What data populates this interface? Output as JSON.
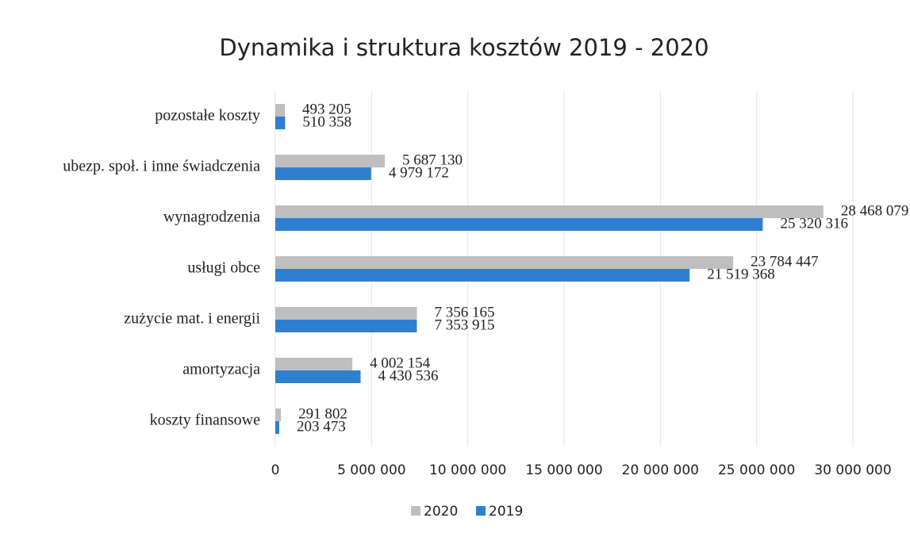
{
  "chart_data": {
    "type": "bar",
    "orientation": "horizontal",
    "title": "Dynamika i struktura kosztów 2019 - 2020",
    "categories": [
      "pozostałe koszty",
      "ubezp. społ. i inne świadczenia",
      "wynagrodzenia",
      "usługi obce",
      "zużycie mat. i energii",
      "amortyzacja",
      "koszty finansowe"
    ],
    "series": [
      {
        "name": "2020",
        "color": "#bfbfbf",
        "values": [
          493205,
          5687130,
          28468079,
          23784447,
          7356165,
          4002154,
          291802
        ],
        "value_labels": [
          "493 205",
          "5 687 130",
          "28 468 079",
          "23 784 447",
          "7 356 165",
          "4 002 154",
          "291 802"
        ]
      },
      {
        "name": "2019",
        "color": "#2f7fd1",
        "values": [
          510358,
          4979172,
          25320316,
          21519368,
          7353915,
          4430536,
          203473
        ],
        "value_labels": [
          "510 358",
          "4 979 172",
          "25 320 316",
          "21 519 368",
          "7 353 915",
          "4 430 536",
          "203 473"
        ]
      }
    ],
    "xlim": [
      0,
      30000000
    ],
    "xticks": [
      0,
      {
        "value": 5000000,
        "label": "5 000 000"
      },
      {
        "value": 10000000,
        "label": "10 000 000"
      },
      {
        "value": 15000000,
        "label": "15 000 000"
      },
      {
        "value": 20000000,
        "label": "20 000 000"
      },
      {
        "value": 25000000,
        "label": "25 000 000"
      },
      {
        "value": 30000000,
        "label": "30 000 000"
      }
    ],
    "grid": true,
    "legend": "bottom"
  }
}
